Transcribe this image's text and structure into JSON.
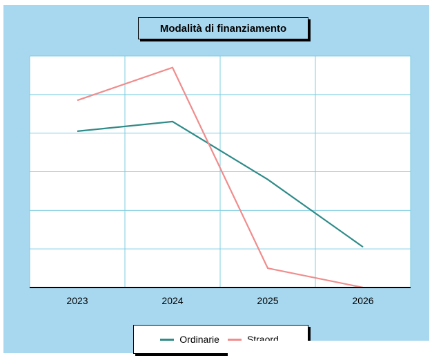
{
  "colors": {
    "background": "#a8d8ef",
    "plot": "#ffffff",
    "grid": "#7ccde0"
  },
  "chart_data": {
    "type": "line",
    "title": "Modalità di finanziamento",
    "categories": [
      "2023",
      "2024",
      "2025",
      "2026"
    ],
    "ylim": [
      0,
      6
    ],
    "grid": true,
    "legend": "bottom",
    "series": [
      {
        "name": "Ordinarie",
        "color": "#2e8b88",
        "values": [
          4.05,
          4.3,
          2.8,
          1.05
        ]
      },
      {
        "name": "Straord.",
        "color": "#f08c8c",
        "values": [
          4.85,
          5.7,
          0.5,
          0.0
        ]
      }
    ]
  }
}
